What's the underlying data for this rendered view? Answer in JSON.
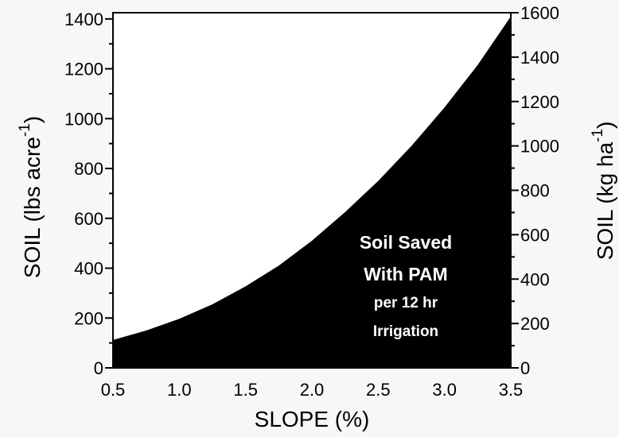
{
  "chart_data": {
    "type": "area",
    "x": [
      0.5,
      0.75,
      1.0,
      1.25,
      1.5,
      1.75,
      2.0,
      2.25,
      2.5,
      2.75,
      3.0,
      3.25,
      3.5
    ],
    "series": [
      {
        "values": [
          112,
          150,
          197,
          255,
          327,
          410,
          510,
          625,
          750,
          890,
          1045,
          1215,
          1410
        ]
      }
    ],
    "xlabel": "SLOPE (%)",
    "ylabel": {
      "text": "SOIL  (lbs acre",
      "sup": "-1",
      "close": ")"
    },
    "y2label": {
      "text": "SOIL  (kg ha",
      "sup": "-1",
      "close": ")"
    },
    "xlim": [
      0.5,
      3.5
    ],
    "ylim": [
      0,
      1425
    ],
    "y2lim": [
      0,
      1600
    ],
    "x_ticks": [
      "0.5",
      "1.0",
      "1.5",
      "2.0",
      "2.5",
      "3.0",
      "3.5"
    ],
    "y_ticks": [
      "0",
      "200",
      "400",
      "600",
      "800",
      "1000",
      "1200",
      "1400"
    ],
    "y2_ticks": [
      "0",
      "200",
      "400",
      "600",
      "800",
      "1000",
      "1200",
      "1400",
      "1600"
    ],
    "annotation": [
      "Soil Saved",
      "With PAM",
      "per 12 hr",
      "Irrigation"
    ],
    "fill_color": "#000000",
    "grid": false
  }
}
